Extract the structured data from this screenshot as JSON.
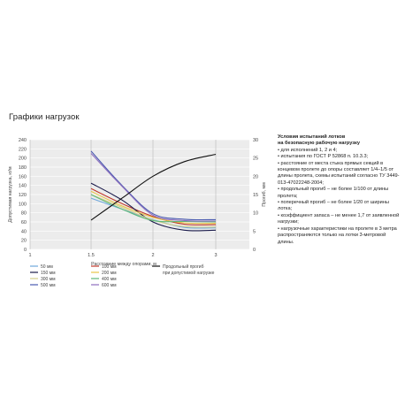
{
  "page_title": "Графики нагрузок",
  "conditions": {
    "title_line1": "Условия испытаний лотков",
    "title_line2": "на безопасную рабочую нагрузку",
    "items": [
      "для исполнений 1, 2 и 4;",
      "испытания по ГОСТ Р 52868 п. 10.3.3;",
      "расстояние от места стыка прямых секций в концевом пролете до опоры составляет 1/4–1/5 от длины пролета, схемы испытаний согласно ТУ 3449-013-47022248-2004;",
      "продольный прогиб – не более 1/100 от длины пролета;",
      "поперечный прогиб – не более 1/20 от ширины лотка;",
      "коэффициент запаса – не менее 1,7 от заявленной нагрузки;",
      "нагрузочные характеристики на пролете в 3 метра распространяются только на лотки 3-метровой длины."
    ]
  },
  "chart_data": {
    "type": "line",
    "xlabel": "Расстояние между опорами, м",
    "ylabel": "Допустимая нагрузка, кг/м",
    "y2label": "Прогиб, мм",
    "xlim": [
      1,
      3.25
    ],
    "ylim": [
      0,
      240
    ],
    "y2lim": [
      0,
      30
    ],
    "x_ticks": [
      "1",
      "1.5",
      "2",
      "3"
    ],
    "y_ticks": [
      "0",
      "20",
      "40",
      "60",
      "80",
      "100",
      "120",
      "140",
      "160",
      "180",
      "200",
      "220",
      "240"
    ],
    "y2_ticks": [
      "0",
      "5",
      "10",
      "15",
      "20",
      "25",
      "30"
    ],
    "grid": true,
    "legend_position": "bottom",
    "series": [
      {
        "name": "50 мм",
        "color": "#6fa8dc",
        "x": [
          1.5,
          1.75,
          2.0,
          2.5,
          3.0
        ],
        "y": [
          112,
          88,
          65,
          48,
          47
        ]
      },
      {
        "name": "100 мм",
        "color": "#c0392b",
        "x": [
          1.5,
          1.75,
          2.0,
          2.5,
          3.0
        ],
        "y": [
          133,
          100,
          72,
          55,
          54
        ]
      },
      {
        "name": "150 мм",
        "color": "#1a1a4a",
        "x": [
          1.5,
          1.75,
          2.0,
          2.5,
          3.0
        ],
        "y": [
          145,
          108,
          60,
          42,
          42
        ]
      },
      {
        "name": "200 мм",
        "color": "#e8c547",
        "x": [
          1.5,
          1.75,
          2.0,
          2.5,
          3.0
        ],
        "y": [
          127,
          95,
          70,
          58,
          57
        ]
      },
      {
        "name": "300 мм",
        "color": "#d4d08a",
        "x": [
          1.5,
          1.75,
          2.0,
          2.5,
          3.0
        ],
        "y": [
          120,
          92,
          64,
          50,
          49
        ]
      },
      {
        "name": "400 мм",
        "color": "#5fb878",
        "x": [
          1.5,
          1.75,
          2.0,
          2.5,
          3.0
        ],
        "y": [
          120,
          88,
          63,
          61,
          60
        ]
      },
      {
        "name": "500 мм",
        "color": "#4a5ab0",
        "x": [
          1.5,
          1.75,
          2.0,
          2.5,
          3.0
        ],
        "y": [
          215,
          140,
          78,
          66,
          65
        ]
      },
      {
        "name": "600 мм",
        "color": "#8e6fbf",
        "x": [
          1.5,
          1.75,
          2.0,
          2.5,
          3.0
        ],
        "y": [
          210,
          138,
          75,
          63,
          62
        ]
      }
    ],
    "secondary_series": {
      "name": "Продольный прогиб при допустимой нагрузке",
      "name_line1": "Продольный прогиб",
      "name_line2": "при допустимой нагрузке",
      "color": "#111111",
      "x": [
        1.5,
        1.75,
        2.0,
        2.5,
        3.0
      ],
      "y": [
        8,
        14,
        20,
        24,
        26
      ]
    }
  }
}
